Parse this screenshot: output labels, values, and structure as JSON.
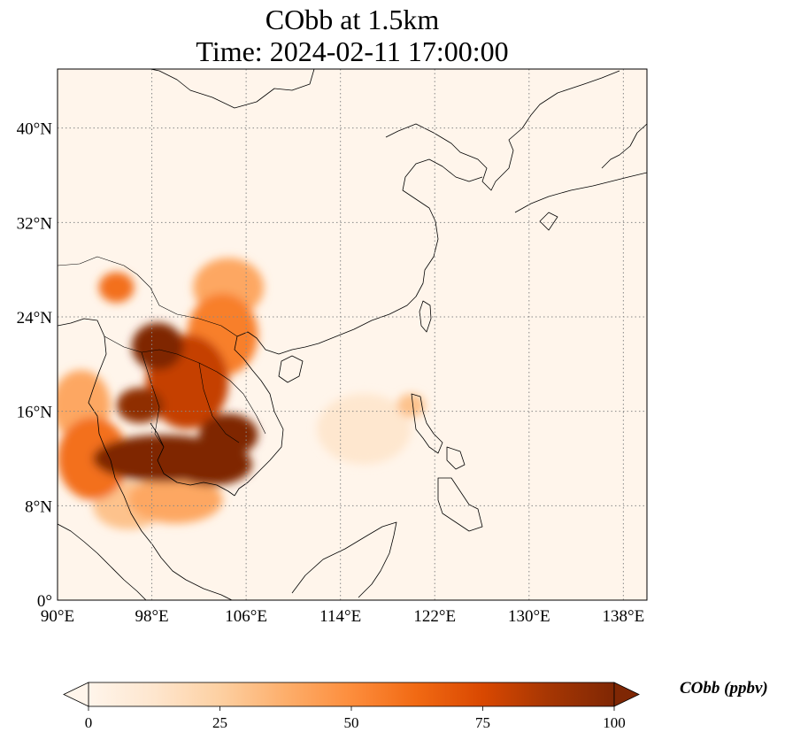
{
  "title": {
    "line1": "CObb at 1.5km",
    "line2": "Time: 2024-02-11 17:00:00"
  },
  "map": {
    "extent": {
      "lon": [
        90,
        140
      ],
      "lat": [
        0,
        45
      ]
    },
    "lon_ticks": [
      {
        "value": 90,
        "label": "90°E"
      },
      {
        "value": 98,
        "label": "98°E"
      },
      {
        "value": 106,
        "label": "106°E"
      },
      {
        "value": 114,
        "label": "114°E"
      },
      {
        "value": 122,
        "label": "122°E"
      },
      {
        "value": 130,
        "label": "130°E"
      },
      {
        "value": 138,
        "label": "138°E"
      }
    ],
    "lat_ticks": [
      {
        "value": 0,
        "label": "0°"
      },
      {
        "value": 8,
        "label": "8°N"
      },
      {
        "value": 16,
        "label": "16°N"
      },
      {
        "value": 24,
        "label": "24°N"
      },
      {
        "value": 32,
        "label": "32°N"
      },
      {
        "value": 40,
        "label": "40°N"
      }
    ],
    "gridlines": "dotted",
    "plumes": [
      {
        "lon": 99,
        "lat": 12.0,
        "value": 100,
        "rlon": 6.0,
        "rlat": 2.0
      },
      {
        "lon": 103,
        "lat": 11.5,
        "value": 100,
        "rlon": 3.5,
        "rlat": 1.8
      },
      {
        "lon": 104.5,
        "lat": 14.0,
        "value": 100,
        "rlon": 2.5,
        "rlat": 1.8
      },
      {
        "lon": 98.5,
        "lat": 21.5,
        "value": 100,
        "rlon": 2.2,
        "rlat": 2.0
      },
      {
        "lon": 97.0,
        "lat": 16.5,
        "value": 95,
        "rlon": 2.0,
        "rlat": 1.5
      },
      {
        "lon": 101,
        "lat": 18.5,
        "value": 80,
        "rlon": 3.5,
        "rlat": 4.0
      },
      {
        "lon": 104,
        "lat": 22.5,
        "value": 55,
        "rlon": 3.0,
        "rlat": 3.5
      },
      {
        "lon": 104.5,
        "lat": 26.5,
        "value": 40,
        "rlon": 3.0,
        "rlat": 2.5
      },
      {
        "lon": 95.0,
        "lat": 26.5,
        "value": 60,
        "rlon": 1.5,
        "rlat": 1.3
      },
      {
        "lon": 93.0,
        "lat": 12.0,
        "value": 60,
        "rlon": 3.0,
        "rlat": 3.5
      },
      {
        "lon": 92.0,
        "lat": 16.5,
        "value": 40,
        "rlon": 2.5,
        "rlat": 3.0
      },
      {
        "lon": 100,
        "lat": 8.5,
        "value": 40,
        "rlon": 4.0,
        "rlat": 2.0
      },
      {
        "lon": 96,
        "lat": 8.0,
        "value": 30,
        "rlon": 3.0,
        "rlat": 2.0
      },
      {
        "lon": 120,
        "lat": 16.5,
        "value": 30,
        "rlon": 1.2,
        "rlat": 1.0
      },
      {
        "lon": 116,
        "lat": 14.5,
        "value": 12,
        "rlon": 4.0,
        "rlat": 3.0
      }
    ]
  },
  "colorbar": {
    "label": "CObb (ppbv)",
    "min": 0,
    "max": 100,
    "extend": "both",
    "ticks": [
      {
        "value": 0,
        "label": "0"
      },
      {
        "value": 25,
        "label": "25"
      },
      {
        "value": 50,
        "label": "50"
      },
      {
        "value": 75,
        "label": "75"
      },
      {
        "value": 100,
        "label": "100"
      }
    ],
    "colors": [
      "#fff5eb",
      "#fee6ce",
      "#fdd0a2",
      "#fdae6b",
      "#fd8d3c",
      "#f16913",
      "#d94801",
      "#a63603",
      "#7f2704"
    ]
  },
  "colors": {
    "background": "#fff5eb",
    "gridline": "#888888",
    "coastline": "#000000"
  }
}
